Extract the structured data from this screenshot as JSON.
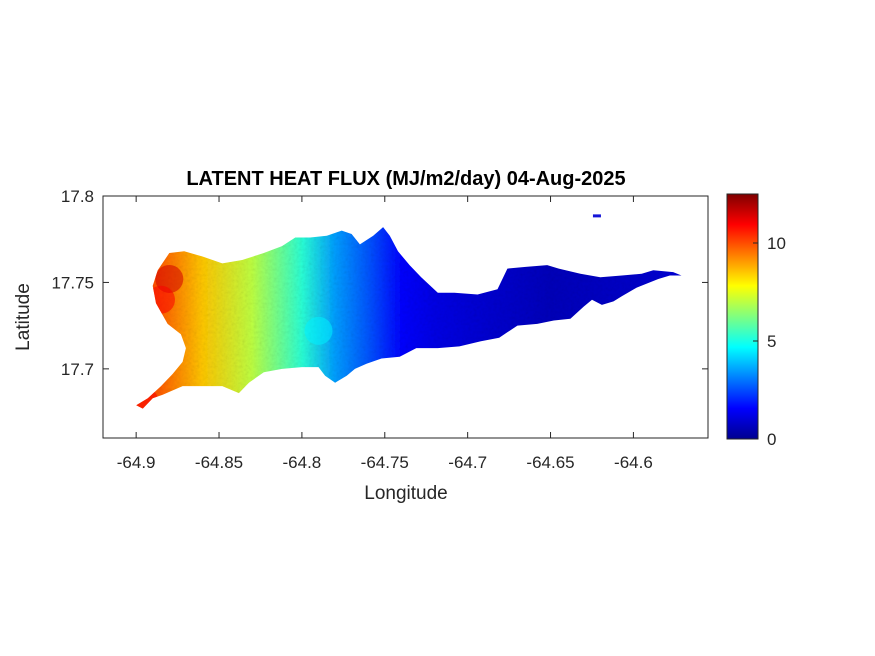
{
  "chart_data": {
    "type": "heatmap",
    "title": "LATENT HEAT FLUX (MJ/m2/day) 04-Aug-2025",
    "xlabel": "Longitude",
    "ylabel": "Latitude",
    "xlim": [
      -64.92,
      -64.555
    ],
    "ylim": [
      17.66,
      17.8
    ],
    "x_ticks": [
      -64.9,
      -64.85,
      -64.8,
      -64.75,
      -64.7,
      -64.65,
      -64.6
    ],
    "x_tick_labels": [
      "-64.9",
      "-64.85",
      "-64.8",
      "-64.75",
      "-64.7",
      "-64.65",
      "-64.6"
    ],
    "y_ticks": [
      17.7,
      17.75,
      17.8
    ],
    "y_tick_labels": [
      "17.7",
      "17.75",
      "17.8"
    ],
    "colorbar": {
      "colormap": "jet",
      "range": [
        0,
        12.5
      ],
      "ticks": [
        0,
        5,
        10
      ],
      "tick_labels": [
        "0",
        "5",
        "10"
      ],
      "colors": [
        "#00008f",
        "#0000ff",
        "#00ffff",
        "#ffff00",
        "#ff0000",
        "#800000"
      ]
    },
    "grid": false,
    "region_outline": [
      [
        -64.9,
        17.679
      ],
      [
        -64.893,
        17.683
      ],
      [
        -64.885,
        17.69
      ],
      [
        -64.878,
        17.697
      ],
      [
        -64.872,
        17.704
      ],
      [
        -64.87,
        17.712
      ],
      [
        -64.873,
        17.72
      ],
      [
        -64.881,
        17.726
      ],
      [
        -64.888,
        17.738
      ],
      [
        -64.89,
        17.748
      ],
      [
        -64.887,
        17.757
      ],
      [
        -64.88,
        17.767
      ],
      [
        -64.871,
        17.768
      ],
      [
        -64.86,
        17.765
      ],
      [
        -64.848,
        17.761
      ],
      [
        -64.836,
        17.763
      ],
      [
        -64.823,
        17.767
      ],
      [
        -64.812,
        17.771
      ],
      [
        -64.804,
        17.776
      ],
      [
        -64.795,
        17.776
      ],
      [
        -64.785,
        17.777
      ],
      [
        -64.776,
        17.78
      ],
      [
        -64.77,
        17.778
      ],
      [
        -64.765,
        17.772
      ],
      [
        -64.757,
        17.777
      ],
      [
        -64.751,
        17.782
      ],
      [
        -64.747,
        17.777
      ],
      [
        -64.742,
        17.768
      ],
      [
        -64.735,
        17.76
      ],
      [
        -64.728,
        17.753
      ],
      [
        -64.718,
        17.744
      ],
      [
        -64.708,
        17.744
      ],
      [
        -64.694,
        17.743
      ],
      [
        -64.682,
        17.746
      ],
      [
        -64.676,
        17.758
      ],
      [
        -64.665,
        17.759
      ],
      [
        -64.652,
        17.76
      ],
      [
        -64.645,
        17.758
      ],
      [
        -64.632,
        17.755
      ],
      [
        -64.62,
        17.753
      ],
      [
        -64.607,
        17.754
      ],
      [
        -64.595,
        17.755
      ],
      [
        -64.588,
        17.757
      ],
      [
        -64.576,
        17.756
      ],
      [
        -64.571,
        17.754
      ],
      [
        -64.578,
        17.754
      ],
      [
        -64.585,
        17.752
      ],
      [
        -64.598,
        17.747
      ],
      [
        -64.607,
        17.742
      ],
      [
        -64.612,
        17.739
      ],
      [
        -64.619,
        17.737
      ],
      [
        -64.625,
        17.74
      ],
      [
        -64.63,
        17.736
      ],
      [
        -64.638,
        17.729
      ],
      [
        -64.648,
        17.728
      ],
      [
        -64.658,
        17.726
      ],
      [
        -64.67,
        17.725
      ],
      [
        -64.681,
        17.718
      ],
      [
        -64.692,
        17.716
      ],
      [
        -64.705,
        17.713
      ],
      [
        -64.718,
        17.712
      ],
      [
        -64.731,
        17.712
      ],
      [
        -64.741,
        17.707
      ],
      [
        -64.752,
        17.706
      ],
      [
        -64.761,
        17.703
      ],
      [
        -64.768,
        17.7
      ],
      [
        -64.773,
        17.696
      ],
      [
        -64.78,
        17.692
      ],
      [
        -64.786,
        17.696
      ],
      [
        -64.79,
        17.701
      ],
      [
        -64.8,
        17.701
      ],
      [
        -64.812,
        17.7
      ],
      [
        -64.823,
        17.698
      ],
      [
        -64.832,
        17.692
      ],
      [
        -64.838,
        17.686
      ],
      [
        -64.848,
        17.69
      ],
      [
        -64.86,
        17.69
      ],
      [
        -64.872,
        17.69
      ],
      [
        -64.884,
        17.685
      ],
      [
        -64.89,
        17.683
      ],
      [
        -64.896,
        17.677
      ]
    ],
    "islet": {
      "lon": -64.622,
      "lat": 17.7885
    },
    "value_field": {
      "gradient_stops": [
        {
          "lon": -64.89,
          "value": 10.0
        },
        {
          "lon": -64.86,
          "value": 8.5
        },
        {
          "lon": -64.83,
          "value": 7.0
        },
        {
          "lon": -64.8,
          "value": 5.2
        },
        {
          "lon": -64.78,
          "value": 3.5
        },
        {
          "lon": -64.76,
          "value": 2.6
        },
        {
          "lon": -64.74,
          "value": 1.6
        },
        {
          "lon": -64.72,
          "value": 1.2
        },
        {
          "lon": -64.7,
          "value": 1.0
        },
        {
          "lon": -64.65,
          "value": 0.6
        },
        {
          "lon": -64.6,
          "value": 0.8
        },
        {
          "lon": -64.57,
          "value": 1.0
        }
      ],
      "hotspots": [
        {
          "lon": -64.88,
          "lat": 17.752,
          "value": 11.5
        },
        {
          "lon": -64.885,
          "lat": 17.74,
          "value": 11.0
        },
        {
          "lon": -64.895,
          "lat": 17.681,
          "value": 11.0
        },
        {
          "lon": -64.79,
          "lat": 17.722,
          "value": 4.5
        }
      ]
    }
  }
}
